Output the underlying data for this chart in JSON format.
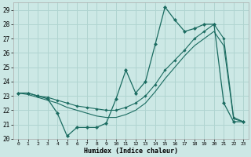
{
  "xlabel": "Humidex (Indice chaleur)",
  "xlim": [
    -0.5,
    23.5
  ],
  "ylim": [
    20,
    29.5
  ],
  "yticks": [
    20,
    21,
    22,
    23,
    24,
    25,
    26,
    27,
    28,
    29
  ],
  "xticks": [
    0,
    1,
    2,
    3,
    4,
    5,
    6,
    7,
    8,
    9,
    10,
    11,
    12,
    13,
    14,
    15,
    16,
    17,
    18,
    19,
    20,
    21,
    22,
    23
  ],
  "background_color": "#cce8e5",
  "grid_color": "#b0d4d0",
  "line_color": "#1a6b60",
  "series1_x": [
    0,
    1,
    2,
    3,
    4,
    5,
    6,
    7,
    8,
    9,
    10,
    11,
    12,
    13,
    14,
    15,
    16,
    17,
    18,
    19,
    20,
    21,
    22,
    23
  ],
  "series1_y": [
    23.2,
    23.2,
    23.0,
    22.8,
    21.8,
    20.2,
    20.8,
    20.8,
    20.8,
    21.1,
    22.8,
    24.8,
    23.2,
    24.0,
    26.6,
    29.2,
    28.3,
    27.5,
    27.7,
    28.0,
    28.0,
    22.5,
    21.2,
    21.2
  ],
  "series2_x": [
    0,
    1,
    2,
    3,
    4,
    5,
    6,
    7,
    8,
    9,
    10,
    11,
    12,
    13,
    14,
    15,
    16,
    17,
    18,
    19,
    20,
    21,
    22,
    23
  ],
  "series2_y": [
    23.2,
    23.2,
    23.0,
    22.9,
    22.7,
    22.5,
    22.3,
    22.2,
    22.1,
    22.0,
    22.0,
    22.2,
    22.5,
    23.0,
    23.8,
    24.8,
    25.5,
    26.2,
    27.0,
    27.5,
    28.0,
    27.0,
    21.5,
    21.2
  ],
  "series3_x": [
    0,
    1,
    2,
    3,
    4,
    5,
    6,
    7,
    8,
    9,
    10,
    11,
    12,
    13,
    14,
    15,
    16,
    17,
    18,
    19,
    20,
    21,
    22,
    23
  ],
  "series3_y": [
    23.2,
    23.1,
    22.9,
    22.7,
    22.5,
    22.2,
    22.0,
    21.8,
    21.6,
    21.5,
    21.5,
    21.7,
    22.0,
    22.5,
    23.3,
    24.2,
    25.0,
    25.8,
    26.5,
    27.0,
    27.5,
    26.5,
    21.4,
    21.2
  ]
}
